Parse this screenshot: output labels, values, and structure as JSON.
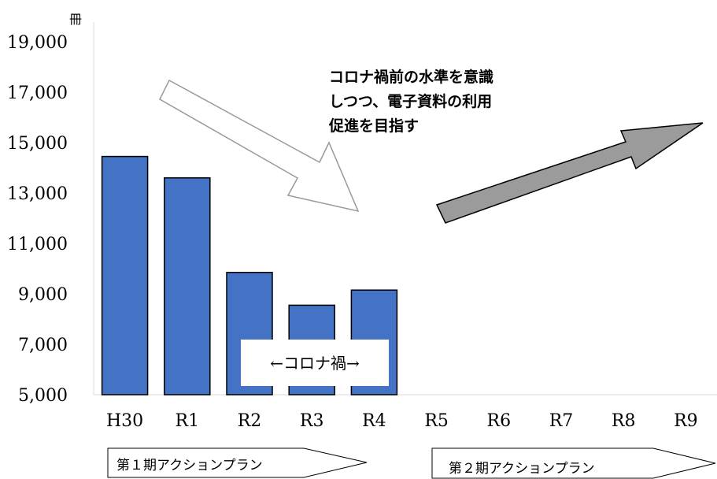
{
  "chart_data": {
    "type": "bar",
    "unit": "冊",
    "categories": [
      "H30",
      "R1",
      "R2",
      "R3",
      "R4",
      "R5",
      "R6",
      "R7",
      "R8",
      "R9"
    ],
    "values": [
      14450,
      13600,
      9850,
      8550,
      9150,
      null,
      null,
      null,
      null,
      null
    ],
    "ylim": [
      5000,
      20000
    ],
    "yticks": [
      5000,
      7000,
      9000,
      11000,
      13000,
      15000,
      17000,
      19000
    ],
    "ytick_labels": [
      "5,000",
      "7,000",
      "9,000",
      "11,000",
      "13,000",
      "15,000",
      "17,000",
      "19,000"
    ],
    "bar_color": "#4472C4",
    "annotations": {
      "note_lines": [
        "コロナ禍前の水準を意識",
        "しつつ、電子資料の利用",
        "促進を目指す"
      ],
      "corona_label": "←コロナ禍→",
      "plan1_label": "第１期アクションプラン",
      "plan2_label": "第２期アクションプラン"
    },
    "arrow_colors": {
      "down_arrow_fill": "#ffffff",
      "down_arrow_stroke": "#999999",
      "up_arrow_fill": "#9b9b9b",
      "up_arrow_stroke": "#000000"
    }
  }
}
